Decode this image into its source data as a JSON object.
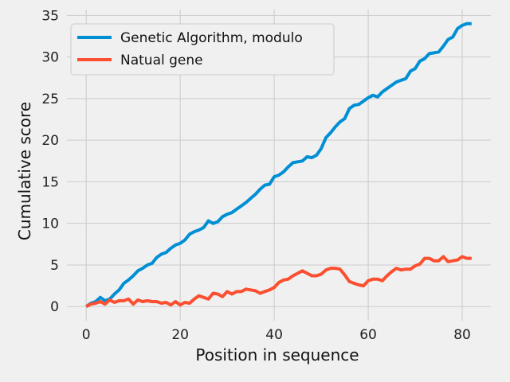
{
  "chart_data": {
    "type": "line",
    "title": "",
    "xlabel": "Position in sequence",
    "ylabel": "Cumulative score",
    "xlim": [
      -4.1,
      86.1
    ],
    "ylim": [
      -1.7,
      35.7
    ],
    "xticks": [
      0,
      20,
      40,
      60,
      80
    ],
    "yticks": [
      0,
      5,
      10,
      15,
      20,
      25,
      30,
      35
    ],
    "grid": true,
    "legend_position": "upper-left",
    "series": [
      {
        "name": "Genetic Algorithm, modulo",
        "color": "#008fd5",
        "x": [
          0,
          1,
          2,
          3,
          4,
          5,
          6,
          7,
          8,
          9,
          10,
          11,
          12,
          13,
          14,
          15,
          16,
          17,
          18,
          19,
          20,
          21,
          22,
          23,
          24,
          25,
          26,
          27,
          28,
          29,
          30,
          31,
          32,
          33,
          34,
          35,
          36,
          37,
          38,
          39,
          40,
          41,
          42,
          43,
          44,
          45,
          46,
          47,
          48,
          49,
          50,
          51,
          52,
          53,
          54,
          55,
          56,
          57,
          58,
          59,
          60,
          61,
          62,
          63,
          64,
          65,
          66,
          67,
          68,
          69,
          70,
          71,
          72,
          73,
          74,
          75,
          76,
          77,
          78,
          79,
          80,
          81,
          82
        ],
        "y": [
          0,
          0.4,
          0.6,
          1.1,
          0.7,
          0.9,
          1.5,
          2.0,
          2.8,
          3.2,
          3.7,
          4.3,
          4.6,
          5.0,
          5.2,
          5.9,
          6.3,
          6.5,
          7.0,
          7.4,
          7.6,
          8.0,
          8.7,
          9.0,
          9.2,
          9.5,
          10.3,
          10.0,
          10.2,
          10.8,
          11.1,
          11.3,
          11.7,
          12.1,
          12.5,
          13.0,
          13.5,
          14.1,
          14.6,
          14.7,
          15.6,
          15.8,
          16.2,
          16.8,
          17.3,
          17.4,
          17.5,
          18.0,
          17.9,
          18.2,
          19.0,
          20.3,
          20.9,
          21.6,
          22.2,
          22.6,
          23.8,
          24.2,
          24.3,
          24.7,
          25.1,
          25.4,
          25.2,
          25.8,
          26.2,
          26.6,
          27.0,
          27.2,
          27.4,
          28.3,
          28.6,
          29.5,
          29.8,
          30.4,
          30.5,
          30.6,
          31.3,
          32.1,
          32.4,
          33.4,
          33.8,
          34.0,
          34.0
        ]
      },
      {
        "name": "Natual gene",
        "color": "#fc4f30",
        "x": [
          0,
          1,
          2,
          3,
          4,
          5,
          6,
          7,
          8,
          9,
          10,
          11,
          12,
          13,
          14,
          15,
          16,
          17,
          18,
          19,
          20,
          21,
          22,
          23,
          24,
          25,
          26,
          27,
          28,
          29,
          30,
          31,
          32,
          33,
          34,
          35,
          36,
          37,
          38,
          39,
          40,
          41,
          42,
          43,
          44,
          45,
          46,
          47,
          48,
          49,
          50,
          51,
          52,
          53,
          54,
          55,
          56,
          57,
          58,
          59,
          60,
          61,
          62,
          63,
          64,
          65,
          66,
          67,
          68,
          69,
          70,
          71,
          72,
          73,
          74,
          75,
          76,
          77,
          78,
          79,
          80,
          81,
          82
        ],
        "y": [
          0,
          0.3,
          0.4,
          0.6,
          0.3,
          0.8,
          0.5,
          0.7,
          0.7,
          0.9,
          0.3,
          0.8,
          0.6,
          0.7,
          0.6,
          0.6,
          0.4,
          0.5,
          0.2,
          0.6,
          0.2,
          0.5,
          0.4,
          0.9,
          1.3,
          1.1,
          0.9,
          1.6,
          1.5,
          1.2,
          1.8,
          1.5,
          1.8,
          1.8,
          2.1,
          2.0,
          1.9,
          1.6,
          1.8,
          2.0,
          2.3,
          2.9,
          3.2,
          3.3,
          3.7,
          4.0,
          4.3,
          4.0,
          3.7,
          3.7,
          3.9,
          4.4,
          4.6,
          4.6,
          4.5,
          3.8,
          3.0,
          2.8,
          2.6,
          2.5,
          3.1,
          3.3,
          3.3,
          3.1,
          3.7,
          4.2,
          4.6,
          4.4,
          4.5,
          4.5,
          4.9,
          5.1,
          5.8,
          5.8,
          5.5,
          5.5,
          6.0,
          5.4,
          5.5,
          5.6,
          6.0,
          5.8,
          5.8
        ]
      }
    ]
  }
}
